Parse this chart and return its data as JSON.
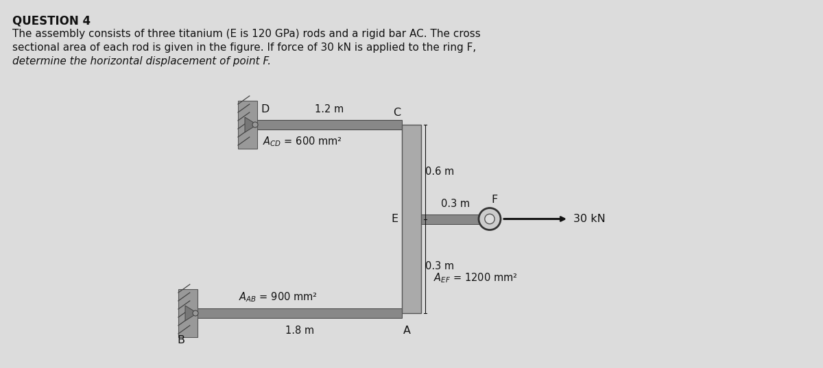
{
  "bg_color": "#dcdcdc",
  "title_bold": "QUESTION 4",
  "description_line1": "The assembly consists of three titanium (E is 120 GPa) rods and a rigid bar AC. The cross",
  "description_line2": "sectional area of each rod is given in the figure. If force of 30 kN is applied to the ring F,",
  "description_line3": "determine the horizontal displacement of point F.",
  "fig_width": 12.0,
  "fig_height": 5.37,
  "rod_color": "#8a8a8a",
  "bar_color": "#9a9a9a",
  "wall_color": "#888888",
  "text_color": "#111111",
  "arrow_color": "#111111",
  "label_D": "D",
  "label_C": "C",
  "label_B": "B",
  "label_A": "A",
  "label_E": "E",
  "label_F": "F",
  "dim_CD": "1.2 m",
  "dim_AB": "1.8 m",
  "dim_EF": "0.3 m",
  "dim_CE": "0.6 m",
  "dim_EA": "0.3 m",
  "force_label": "30 kN"
}
